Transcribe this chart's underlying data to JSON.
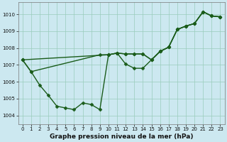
{
  "xlabel": "Graphe pression niveau de la mer (hPa)",
  "background_color": "#cce8f0",
  "grid_color": "#99ccbb",
  "line_color": "#1a5c1a",
  "marker_color": "#1a5c1a",
  "xlim": [
    -0.5,
    23.5
  ],
  "ylim": [
    1003.5,
    1010.7
  ],
  "yticks": [
    1004,
    1005,
    1006,
    1007,
    1008,
    1009,
    1010
  ],
  "xticks": [
    0,
    1,
    2,
    3,
    4,
    5,
    6,
    7,
    8,
    9,
    10,
    11,
    12,
    13,
    14,
    15,
    16,
    17,
    18,
    19,
    20,
    21,
    22,
    23
  ],
  "series": [
    {
      "x": [
        0,
        1,
        2,
        3,
        4,
        5,
        6,
        7,
        8,
        9,
        10,
        11,
        12,
        13,
        14,
        15,
        16,
        17,
        18,
        19,
        20,
        21,
        22,
        23
      ],
      "y": [
        1007.3,
        1006.6,
        1005.8,
        1005.2,
        1004.55,
        1004.45,
        1004.35,
        1004.75,
        1004.65,
        1004.35,
        1007.6,
        1007.7,
        1007.05,
        1006.8,
        1006.8,
        1007.3,
        1007.8,
        1008.05,
        1009.1,
        1009.3,
        1009.45,
        1010.15,
        1009.9,
        1009.85
      ]
    },
    {
      "x": [
        0,
        1,
        9,
        10,
        11,
        12,
        13,
        14,
        15,
        16,
        17,
        18,
        19,
        20,
        21,
        22,
        23
      ],
      "y": [
        1007.3,
        1006.6,
        1007.6,
        1007.6,
        1007.7,
        1007.65,
        1007.65,
        1007.65,
        1007.3,
        1007.8,
        1008.05,
        1009.1,
        1009.3,
        1009.45,
        1010.15,
        1009.9,
        1009.85
      ]
    },
    {
      "x": [
        0,
        10,
        11,
        12,
        13,
        14,
        15,
        16,
        17,
        18,
        19,
        20,
        21,
        22,
        23
      ],
      "y": [
        1007.3,
        1007.6,
        1007.7,
        1007.65,
        1007.65,
        1007.65,
        1007.3,
        1007.8,
        1008.05,
        1009.1,
        1009.3,
        1009.45,
        1010.15,
        1009.9,
        1009.85
      ]
    }
  ],
  "marker": "D",
  "markersize": 2.5,
  "linewidth": 1.0,
  "tick_fontsize": 5.0,
  "label_fontsize": 6.5,
  "fig_width": 3.2,
  "fig_height": 2.0,
  "dpi": 100
}
